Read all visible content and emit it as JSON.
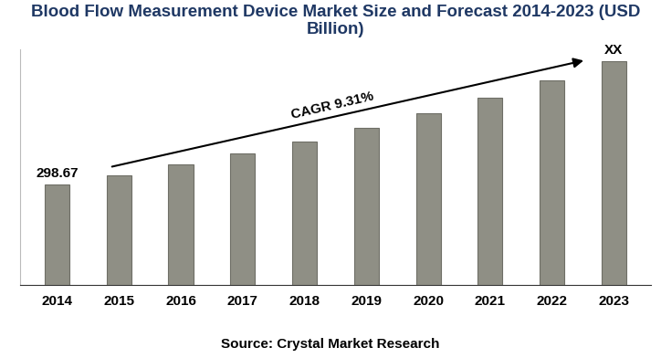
{
  "chart_data": {
    "type": "bar",
    "title": "Blood Flow Measurement Device Market Size and Forecast 2014-2023 (USD Billion)",
    "categories": [
      "2014",
      "2015",
      "2016",
      "2017",
      "2018",
      "2019",
      "2020",
      "2021",
      "2022",
      "2023"
    ],
    "values": [
      298.67,
      327,
      357,
      390,
      426,
      466,
      509,
      557,
      609,
      665
    ],
    "color": "#8f8f85",
    "ylim": [
      0,
      700
    ],
    "yticks": [],
    "grid": false,
    "tick_labels": "x",
    "annotations": [
      {
        "text": "298.67",
        "category": "2014"
      },
      {
        "text": "XX",
        "category": "2023"
      },
      {
        "text": "CAGR 9.31%"
      }
    ],
    "source": "Source: Crystal Market Research"
  }
}
